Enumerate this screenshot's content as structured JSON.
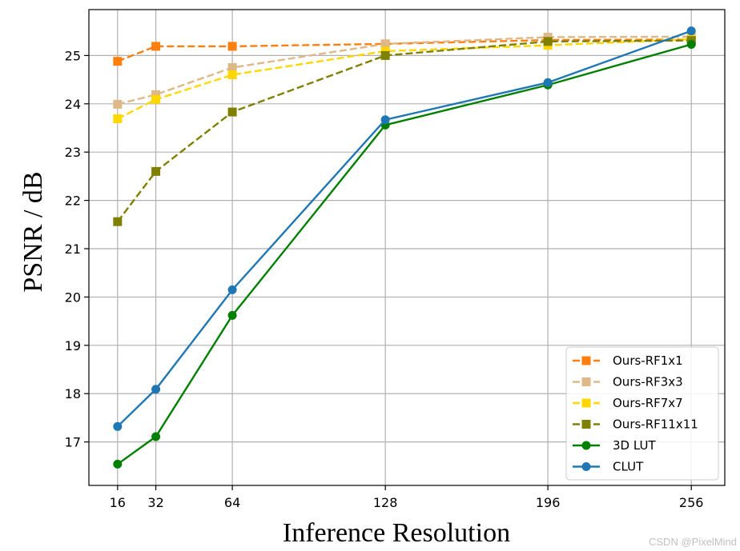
{
  "chart_data": {
    "type": "line",
    "xlabel": "Inference Resolution",
    "ylabel": "PSNR / dB",
    "x_ticks": [
      16,
      32,
      64,
      128,
      196,
      256
    ],
    "y_ticks": [
      17,
      18,
      19,
      20,
      21,
      22,
      23,
      24,
      25
    ],
    "xlim": [
      4,
      270
    ],
    "ylim": [
      16.1,
      25.95
    ],
    "grid": true,
    "legend_position": "lower-right",
    "x": [
      16,
      32,
      64,
      128,
      196,
      256
    ],
    "series": [
      {
        "name": "Ours-RF1x1",
        "color": "#ff7f0e",
        "style": "dashed",
        "marker": "square",
        "values": [
          24.88,
          25.19,
          25.19,
          25.24,
          25.32,
          25.33
        ]
      },
      {
        "name": "Ours-RF3x3",
        "color": "#deb887",
        "style": "dashed",
        "marker": "square",
        "values": [
          23.99,
          24.19,
          24.75,
          25.24,
          25.38,
          25.39
        ]
      },
      {
        "name": "Ours-RF7x7",
        "color": "#ffd700",
        "style": "dashed",
        "marker": "square",
        "values": [
          23.69,
          24.09,
          24.6,
          25.09,
          25.21,
          25.34
        ]
      },
      {
        "name": "Ours-RF11x11",
        "color": "#808000",
        "style": "dashed",
        "marker": "square",
        "values": [
          21.56,
          22.6,
          23.83,
          25.0,
          25.29,
          25.31
        ]
      },
      {
        "name": "3D LUT",
        "color": "#008000",
        "style": "solid",
        "marker": "circle",
        "values": [
          16.54,
          17.11,
          19.62,
          23.56,
          24.39,
          25.23
        ]
      },
      {
        "name": "CLUT",
        "color": "#1f77b4",
        "style": "solid",
        "marker": "circle",
        "values": [
          17.32,
          18.09,
          20.15,
          23.67,
          24.44,
          25.51
        ]
      }
    ]
  },
  "watermark": "CSDN @PixelMind"
}
